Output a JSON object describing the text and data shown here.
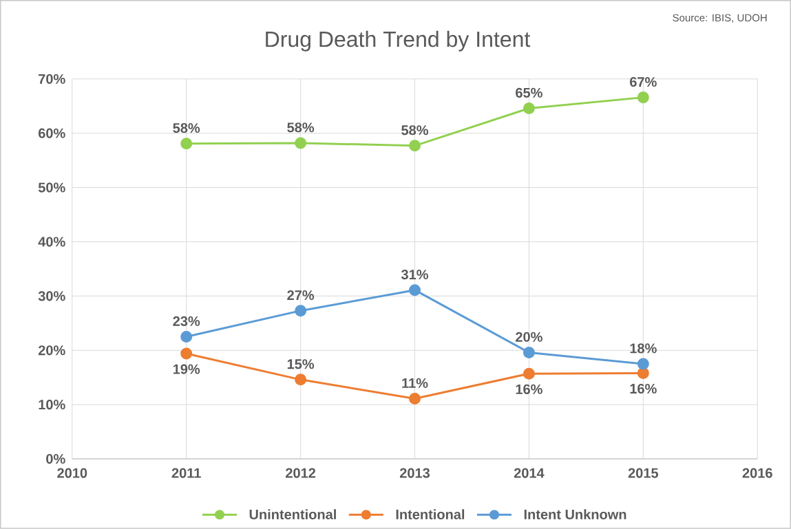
{
  "chart_data": {
    "type": "line",
    "title": "Drug Death Trend by Intent",
    "annotations": [
      "Source: IBIS, UDOH"
    ],
    "x": [
      2011,
      2012,
      2013,
      2014,
      2015
    ],
    "series": [
      {
        "name": "Unintentional",
        "color": "#92d050",
        "values": [
          58.1,
          58.2,
          57.7,
          64.6,
          66.6
        ],
        "value_labels": [
          "58%",
          "58%",
          "58%",
          "65%",
          "67%"
        ]
      },
      {
        "name": "Intentional",
        "color": "#ed7d31",
        "values": [
          19.4,
          14.6,
          11.1,
          15.7,
          15.8
        ],
        "value_labels": [
          "19%",
          "15%",
          "11%",
          "16%",
          "16%"
        ]
      },
      {
        "name": "Intent Unknown",
        "color": "#5b9bd5",
        "values": [
          22.5,
          27.3,
          31.1,
          19.6,
          17.5
        ],
        "value_labels": [
          "23%",
          "27%",
          "31%",
          "20%",
          "18%"
        ]
      }
    ],
    "xlim": [
      2010,
      2016
    ],
    "xticks": [
      2010,
      2011,
      2012,
      2013,
      2014,
      2015,
      2016
    ],
    "ylim": [
      0,
      70
    ],
    "yticks": [
      {
        "value": 0,
        "label": "0%"
      },
      {
        "value": 10,
        "label": "10%"
      },
      {
        "value": 20,
        "label": "20%"
      },
      {
        "value": 30,
        "label": "30%"
      },
      {
        "value": 40,
        "label": "40%"
      },
      {
        "value": 50,
        "label": "50%"
      },
      {
        "value": 60,
        "label": "60%"
      },
      {
        "value": 70,
        "label": "70%"
      }
    ],
    "grid": true,
    "legend": "bottom",
    "marker": "circle",
    "line_style": "solid"
  }
}
